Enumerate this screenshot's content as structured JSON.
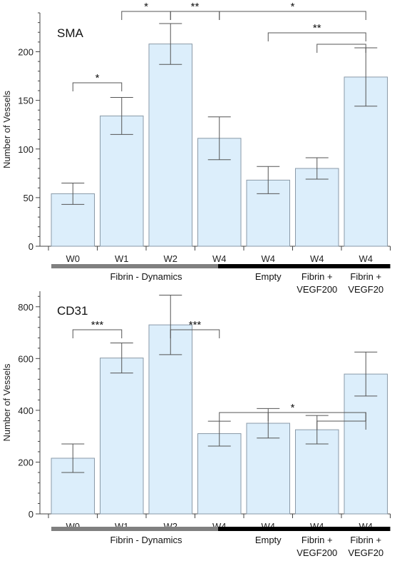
{
  "chart_data": [
    {
      "type": "bar",
      "title": "SMA",
      "ylabel": "Number of Vessels",
      "ylim": [
        0,
        240
      ],
      "yticks": [
        0,
        50,
        100,
        150,
        200
      ],
      "categories": [
        "W0",
        "W1",
        "W2",
        "W4",
        "W4",
        "W4",
        "W4"
      ],
      "values": [
        54,
        134,
        208,
        111,
        68,
        80,
        174
      ],
      "errors": [
        11,
        19,
        21,
        22,
        14,
        11,
        30
      ],
      "groups": [
        {
          "label": "Fibrin - Dynamics",
          "lines": [
            "Fibrin - Dynamics"
          ],
          "from": 0,
          "to": 3,
          "color": "#808080"
        },
        {
          "label": "Empty",
          "lines": [
            "Empty"
          ],
          "from": 4,
          "to": 4,
          "color": "#000000"
        },
        {
          "label": "Fibrin + VEGF200",
          "lines": [
            "Fibrin +",
            "VEGF200"
          ],
          "from": 5,
          "to": 5,
          "color": "#000000"
        },
        {
          "label": "Fibrin + VEGF20",
          "lines": [
            "Fibrin +",
            "VEGF20"
          ],
          "from": 6,
          "to": 6,
          "color": "#000000"
        }
      ],
      "significance": [
        {
          "from": 0,
          "to": 1,
          "label": "*"
        },
        {
          "from": 1,
          "to": 2,
          "label": "*"
        },
        {
          "from": 2,
          "to": 3,
          "label": "**"
        },
        {
          "from": 3,
          "to": 6,
          "label": "*"
        },
        {
          "from": 4,
          "to": 6,
          "label": "**"
        },
        {
          "from": 5,
          "to": 6,
          "label": ""
        }
      ]
    },
    {
      "type": "bar",
      "title": "CD31",
      "ylabel": "Number of Vessels",
      "ylim": [
        0,
        860
      ],
      "yticks": [
        0,
        200,
        400,
        600,
        800
      ],
      "categories": [
        "W0",
        "W1",
        "W2",
        "W4",
        "W4",
        "W4",
        "W4"
      ],
      "values": [
        215,
        602,
        730,
        310,
        350,
        325,
        540
      ],
      "errors": [
        55,
        58,
        115,
        48,
        57,
        55,
        85
      ],
      "groups": [
        {
          "label": "Fibrin - Dynamics",
          "lines": [
            "Fibrin - Dynamics"
          ],
          "from": 0,
          "to": 3,
          "color": "#808080"
        },
        {
          "label": "Empty",
          "lines": [
            "Empty"
          ],
          "from": 4,
          "to": 4,
          "color": "#000000"
        },
        {
          "label": "Fibrin + VEGF200",
          "lines": [
            "Fibrin +",
            "VEGF200"
          ],
          "from": 5,
          "to": 5,
          "color": "#000000"
        },
        {
          "label": "Fibrin + VEGF20",
          "lines": [
            "Fibrin +",
            "VEGF20"
          ],
          "from": 6,
          "to": 6,
          "color": "#000000"
        }
      ],
      "significance": [
        {
          "from": 0,
          "to": 1,
          "label": "***"
        },
        {
          "from": 2,
          "to": 3,
          "label": "***"
        },
        {
          "from": 3,
          "to": 6,
          "label": "*"
        },
        {
          "from": 4,
          "to": 6,
          "label": ""
        },
        {
          "from": 5,
          "to": 6,
          "label": ""
        }
      ]
    }
  ],
  "colors": {
    "bar_fill": "#dceefb",
    "bar_stroke": "#8a9aa8",
    "axis": "#444444",
    "error_bar": "#555555",
    "bracket": "#555555"
  }
}
